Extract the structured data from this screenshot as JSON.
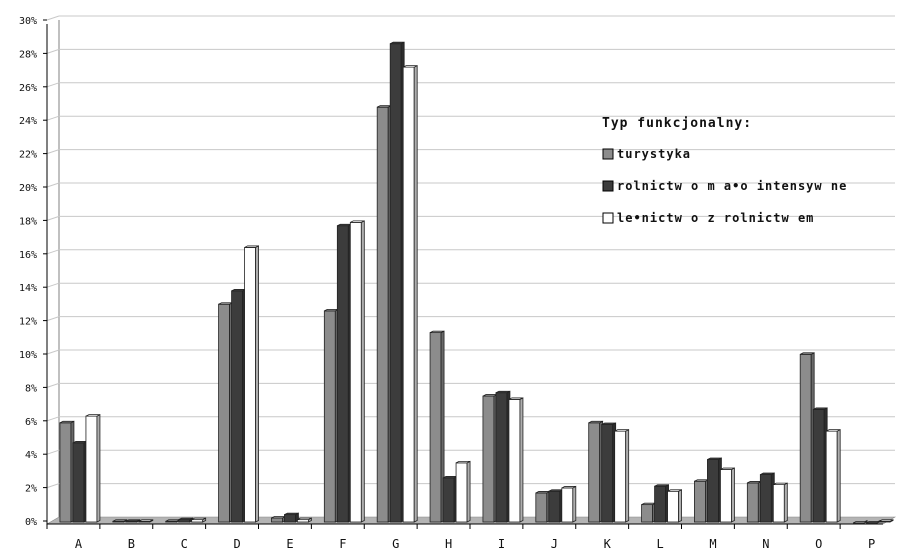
{
  "chart_data": {
    "type": "bar",
    "categories": [
      "A",
      "B",
      "C",
      "D",
      "E",
      "F",
      "G",
      "H",
      "I",
      "J",
      "K",
      "L",
      "M",
      "N",
      "O",
      "P"
    ],
    "series": [
      {
        "name": "turystyka",
        "color": "#8c8c8c",
        "values": [
          6.0,
          0.1,
          0.1,
          13.1,
          0.3,
          12.7,
          24.9,
          11.4,
          7.6,
          1.8,
          6.0,
          1.1,
          2.5,
          2.4,
          10.1,
          0.0
        ]
      },
      {
        "name": "rolnictw o m a•o intensyw ne",
        "color": "#3c3c3c",
        "values": [
          4.8,
          0.1,
          0.2,
          13.9,
          0.5,
          17.8,
          28.7,
          2.7,
          7.8,
          1.9,
          5.9,
          2.2,
          3.8,
          2.9,
          6.8,
          0.0
        ]
      },
      {
        "name": "le•nictw o z rolnictw em",
        "color": "#ffffff",
        "values": [
          6.4,
          0.1,
          0.2,
          16.5,
          0.2,
          18.0,
          27.3,
          3.6,
          7.4,
          2.1,
          5.5,
          1.9,
          3.2,
          2.3,
          5.5,
          0.1
        ]
      }
    ],
    "y_ticks": [
      "0%",
      "2%",
      "4%",
      "6%",
      "8%",
      "10%",
      "12%",
      "14%",
      "16%",
      "18%",
      "20%",
      "22%",
      "24%",
      "26%",
      "28%",
      "30%"
    ],
    "ylim": [
      0,
      30
    ],
    "y_unit": "%",
    "grid": true,
    "legend": {
      "title": "Typ funkcjonalny:",
      "placement": "right"
    }
  }
}
